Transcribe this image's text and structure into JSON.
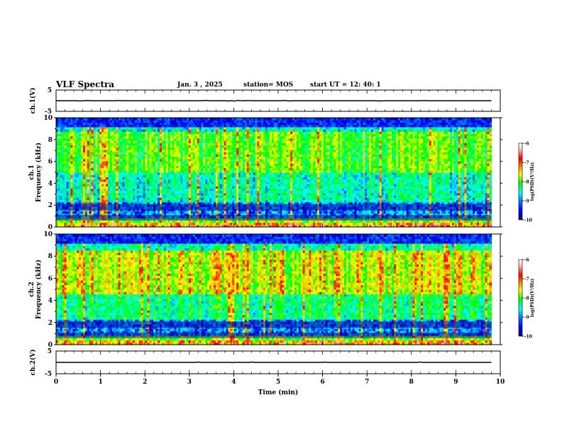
{
  "header": {
    "title": "VLF Spectra",
    "date": "Jan. 3 , 2025",
    "station": "station= MOS",
    "start": "start UT = 12: 40: 1"
  },
  "chart_data": [
    {
      "type": "line",
      "panel": "ch1-voltage",
      "ylabel": "ch.1(V)",
      "ylim": [
        -5,
        5
      ],
      "yticks": [
        "5",
        "-5"
      ],
      "xlim": [
        0,
        10
      ],
      "series": [
        {
          "x": [
            0,
            9.8
          ],
          "values": [
            0,
            0
          ]
        }
      ]
    },
    {
      "type": "heatmap",
      "panel": "ch1-spectrogram",
      "ylabel": "ch.1\nFrequency (kHz)",
      "ylabel_line1": "ch.1",
      "ylabel_line2": "Frequency (kHz)",
      "ylim": [
        0,
        10
      ],
      "yticks": [
        "0",
        "2",
        "4",
        "6",
        "8",
        "10"
      ],
      "xlim": [
        0,
        10
      ],
      "data_end_min": 9.8,
      "colorbar": {
        "label": "log(PSD)(V²/Hz)",
        "range": [
          -10,
          -6
        ],
        "ticks": [
          "-6",
          "-7",
          "-8",
          "-9",
          "-10"
        ],
        "colors": [
          "#000080",
          "#0000ff",
          "#0080ff",
          "#00ffff",
          "#00ff00",
          "#ffff00",
          "#ff8000",
          "#ff0000",
          "#ffd0d0",
          "#ffffff"
        ]
      }
    },
    {
      "type": "heatmap",
      "panel": "ch2-spectrogram",
      "ylabel": "ch.2\nFrequency (kHz)",
      "ylabel_line1": "ch.2",
      "ylabel_line2": "Frequency (kHz)",
      "ylim": [
        0,
        10
      ],
      "yticks": [
        "0",
        "2",
        "4",
        "6",
        "8",
        "10"
      ],
      "xlim": [
        0,
        10
      ],
      "data_end_min": 9.8,
      "colorbar": {
        "label": "log(PSD)(V²/Hz)",
        "range": [
          -10,
          -6
        ],
        "ticks": [
          "-6",
          "-7",
          "-8",
          "-9",
          "-10"
        ]
      }
    },
    {
      "type": "line",
      "panel": "ch2-voltage",
      "ylabel": "ch.2(V)",
      "ylim": [
        -5,
        5
      ],
      "yticks": [
        "5",
        "-5"
      ],
      "xlim": [
        0,
        10
      ],
      "xlabel": "Time (min)",
      "xticks": [
        "0",
        "1",
        "2",
        "3",
        "4",
        "5",
        "6",
        "7",
        "8",
        "9",
        "10"
      ],
      "series": [
        {
          "x": [
            0,
            9.8
          ],
          "values": [
            0,
            0
          ]
        }
      ]
    }
  ]
}
